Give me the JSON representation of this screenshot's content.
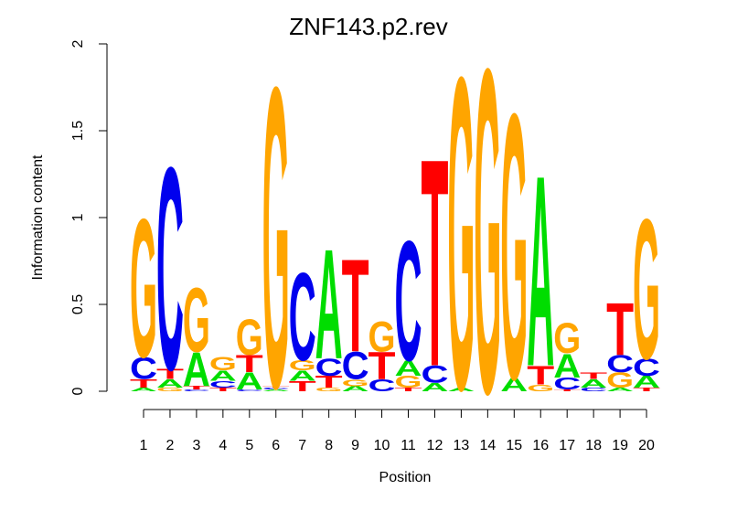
{
  "chart_data": {
    "type": "sequence-logo",
    "title": "ZNF143.p2.rev",
    "xlabel": "Position",
    "ylabel": "Information content",
    "ylim": [
      0,
      2
    ],
    "yticks": [
      "0",
      "0.5",
      "1",
      "1.5",
      "2"
    ],
    "positions": [
      "1",
      "2",
      "3",
      "4",
      "5",
      "6",
      "7",
      "8",
      "9",
      "10",
      "11",
      "12",
      "13",
      "14",
      "15",
      "16",
      "17",
      "18",
      "19",
      "20"
    ],
    "colors": {
      "A": "#00dd00",
      "C": "#0000ee",
      "G": "#ffa500",
      "T": "#ff0000"
    },
    "columns": [
      [
        [
          "A",
          0.02
        ],
        [
          "T",
          0.05
        ],
        [
          "C",
          0.13
        ],
        [
          "G",
          0.82
        ]
      ],
      [
        [
          "G",
          0.02
        ],
        [
          "A",
          0.05
        ],
        [
          "T",
          0.06
        ],
        [
          "C",
          1.2
        ]
      ],
      [
        [
          "C",
          0.01
        ],
        [
          "T",
          0.02
        ],
        [
          "A",
          0.2
        ],
        [
          "G",
          0.38
        ]
      ],
      [
        [
          "T",
          0.02
        ],
        [
          "C",
          0.04
        ],
        [
          "A",
          0.06
        ],
        [
          "G",
          0.08
        ]
      ],
      [
        [
          "C",
          0.01
        ],
        [
          "A",
          0.1
        ],
        [
          "T",
          0.1
        ],
        [
          "G",
          0.21
        ]
      ],
      [
        [
          "A",
          0.01
        ],
        [
          "C",
          0.01
        ],
        [
          "T",
          0.01
        ],
        [
          "G",
          1.78
        ]
      ],
      [
        [
          "T",
          0.06
        ],
        [
          "A",
          0.06
        ],
        [
          "G",
          0.06
        ],
        [
          "C",
          0.52
        ]
      ],
      [
        [
          "G",
          0.02
        ],
        [
          "T",
          0.07
        ],
        [
          "C",
          0.1
        ],
        [
          "A",
          0.65
        ]
      ],
      [
        [
          "A",
          0.03
        ],
        [
          "G",
          0.04
        ],
        [
          "C",
          0.16
        ],
        [
          "T",
          0.55
        ]
      ],
      [
        [
          "C",
          0.07
        ],
        [
          "T",
          0.16
        ],
        [
          "G",
          0.18
        ]
      ],
      [
        [
          "T",
          0.02
        ],
        [
          "G",
          0.07
        ],
        [
          "A",
          0.09
        ],
        [
          "C",
          0.71
        ]
      ],
      [
        [
          "A",
          0.05
        ],
        [
          "C",
          0.1
        ],
        [
          "T",
          1.23
        ]
      ],
      [
        [
          "A",
          0.02
        ],
        [
          "G",
          1.85
        ]
      ],
      [
        [
          "G",
          1.92
        ]
      ],
      [
        [
          "A",
          0.08
        ],
        [
          "G",
          1.57
        ]
      ],
      [
        [
          "G",
          0.04
        ],
        [
          "T",
          0.11
        ],
        [
          "A",
          1.13
        ]
      ],
      [
        [
          "T",
          0.01
        ],
        [
          "C",
          0.07
        ],
        [
          "A",
          0.14
        ],
        [
          "G",
          0.18
        ]
      ],
      [
        [
          "C",
          0.02
        ],
        [
          "A",
          0.05
        ],
        [
          "T",
          0.04
        ]
      ],
      [
        [
          "A",
          0.02
        ],
        [
          "G",
          0.09
        ],
        [
          "C",
          0.1
        ],
        [
          "T",
          0.31
        ]
      ],
      [
        [
          "T",
          0.02
        ],
        [
          "A",
          0.07
        ],
        [
          "C",
          0.1
        ],
        [
          "G",
          0.83
        ]
      ]
    ]
  }
}
